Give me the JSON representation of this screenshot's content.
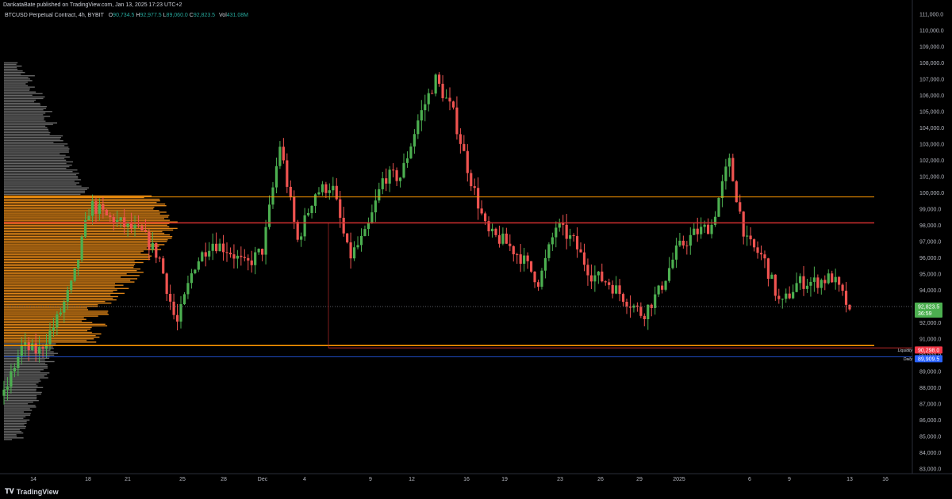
{
  "header": {
    "publish_text": "DankataBate published on TradingView.com, Jan 13, 2025 17:23 UTC+2",
    "symbol_text": "BTCUSD Perpetual Contract, 4h, BYBIT",
    "open_label": "O",
    "open_value": "90,734.5",
    "high_label": "H",
    "high_value": "92,977.5",
    "low_label": "L",
    "low_value": "89,060.0",
    "close_label": "C",
    "close_value": "92,823.5",
    "vol_label": "Vol",
    "vol_value": "431.08M"
  },
  "footer": {
    "brand": "TradingView"
  },
  "colors": {
    "background": "#000000",
    "up": "#26a69a",
    "down": "#ef5350",
    "up_bright": "#4caf50",
    "range_line": "#ff9800",
    "level_line": "#d32f2f",
    "profile_orange": "#f7931a",
    "profile_gray": "#8a8a8a",
    "axis_text": "#b2b5be",
    "last_price_bg": "#4caf50",
    "liquidity_bg": "#f23645",
    "daily_bg": "#2962ff"
  },
  "chart_data": {
    "type": "candlestick",
    "title": "BTCUSD Perpetual Contract, 4h, BYBIT",
    "y_axis_side": "right",
    "ylim": [
      83000,
      111000
    ],
    "y_ticks": [
      "111,000.0",
      "110,000.0",
      "109,000.0",
      "108,000.0",
      "107,000.0",
      "106,000.0",
      "105,000.0",
      "104,000.0",
      "103,000.0",
      "102,000.0",
      "101,000.0",
      "100,000.0",
      "99,000.0",
      "98,000.0",
      "97,000.0",
      "96,000.0",
      "95,000.0",
      "94,000.0",
      "93,000.0",
      "92,000.0",
      "91,000.0",
      "90,000.0",
      "89,000.0",
      "88,000.0",
      "87,000.0",
      "86,000.0",
      "85,000.0",
      "84,000.0",
      "83,000.0"
    ],
    "x_ticks": [
      "14",
      "18",
      "21",
      "25",
      "28",
      "Dec",
      "4",
      "9",
      "12",
      "16",
      "19",
      "23",
      "26",
      "29",
      "2025",
      "6",
      "9",
      "13",
      "16"
    ],
    "price_path": [
      [
        "14",
        87500
      ],
      [
        "16",
        90500
      ],
      [
        "18",
        90200
      ],
      [
        "19",
        92000
      ],
      [
        "20",
        94500
      ],
      [
        "21",
        99300
      ],
      [
        "22",
        98500
      ],
      [
        "23",
        98000
      ],
      [
        "24",
        97500
      ],
      [
        "25",
        96000
      ],
      [
        "26",
        91800
      ],
      [
        "27",
        95500
      ],
      [
        "28",
        97000
      ],
      [
        "30",
        96500
      ],
      [
        "Dec 2",
        95500
      ],
      [
        "Dec 3",
        96500
      ],
      [
        "Dec 5",
        103000
      ],
      [
        "Dec 5b",
        97000
      ],
      [
        "Dec 6",
        100000
      ],
      [
        "Dec 8",
        100500
      ],
      [
        "Dec 9",
        96000
      ],
      [
        "Dec 10",
        97500
      ],
      [
        "Dec 11",
        101000
      ],
      [
        "Dec 13",
        101000
      ],
      [
        "Dec 15",
        104500
      ],
      [
        "Dec 17",
        107000
      ],
      [
        "Dec 18",
        105000
      ],
      [
        "Dec 19",
        101000
      ],
      [
        "Dec 20",
        97500
      ],
      [
        "Dec 21",
        97000
      ],
      [
        "Dec 22",
        96000
      ],
      [
        "Dec 23",
        94500
      ],
      [
        "Dec 24",
        98000
      ],
      [
        "Dec 26",
        97000
      ],
      [
        "Dec 27",
        95000
      ],
      [
        "Dec 28",
        94500
      ],
      [
        "Dec 30",
        93500
      ],
      [
        "Dec 31",
        92500
      ],
      [
        "Jan 1",
        94000
      ],
      [
        "Jan 2",
        96500
      ],
      [
        "Jan 3",
        97500
      ],
      [
        "Jan 5",
        98000
      ],
      [
        "Jan 6",
        102000
      ],
      [
        "Jan 7",
        97000
      ],
      [
        "Jan 8",
        96000
      ],
      [
        "Jan 9",
        93000
      ],
      [
        "Jan 10",
        94500
      ],
      [
        "Jan 11",
        94500
      ],
      [
        "Jan 12",
        94800
      ],
      [
        "Jan 13",
        92823.5
      ]
    ],
    "horizontal_levels": [
      {
        "price": 99750,
        "style": "range-high"
      },
      {
        "price": 98150,
        "style": "level"
      },
      {
        "price": 93000,
        "style": "last-price-dotted"
      },
      {
        "price": 90600,
        "style": "range-low"
      },
      {
        "price": 89909.5,
        "style": "daily"
      }
    ],
    "price_labels": [
      {
        "name": "last",
        "text": "92,823.5",
        "sub": "36:59"
      },
      {
        "name": "Liquidity",
        "text": "90,298.0"
      },
      {
        "name": "Daily",
        "text": "89,909.5"
      }
    ],
    "volume_profile": {
      "price_range": [
        84800,
        108000
      ],
      "value_area": [
        90800,
        99800
      ],
      "poc": 98000
    }
  }
}
